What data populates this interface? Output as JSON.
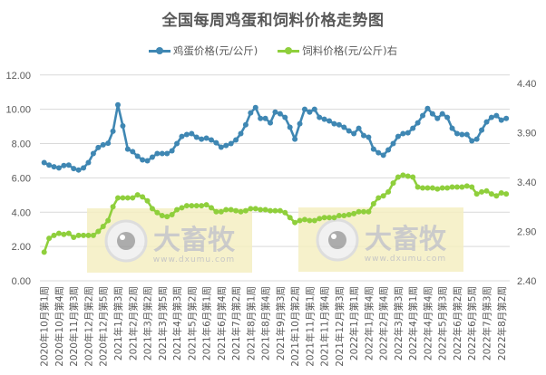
{
  "chart_data": {
    "type": "line",
    "title": "全国每周鸡蛋和饲料价格走势图",
    "xlabel": "",
    "ylabel": "",
    "y_left": {
      "ticks": [
        "0.00",
        "2.00",
        "4.00",
        "6.00",
        "8.00",
        "10.00",
        "12.00"
      ],
      "range": [
        0,
        12
      ]
    },
    "y_right": {
      "ticks": [
        "2.40",
        "2.90",
        "3.40",
        "3.90",
        "4.40"
      ],
      "range": [
        2.4,
        4.4
      ]
    },
    "grid": true,
    "legend_position": "top",
    "x_tick_labels": [
      "2020年10月第1周",
      "2020年10月第4周",
      "2020年11月第3周",
      "2020年12月第2周",
      "2020年12月第5周",
      "2021年1月第3周",
      "2021年2月第2周",
      "2021年3月第2周",
      "2021年3月第5周",
      "2021年4月第3周",
      "2021年5月第2周",
      "2021年6月第1周",
      "2021年6月第4周",
      "2021年7月第2周",
      "2021年8月第1周",
      "2021年8月第4周",
      "2021年9月第3周",
      "2021年10月第2周",
      "2021年11月第1周",
      "2021年11月第4周",
      "2021年12月第3周",
      "2022年1月第1周",
      "2022年1月第4周",
      "2022年2月第4周",
      "2022年3月第3周",
      "2022年4月第1周",
      "2022年4月第4周",
      "2022年5月第3周",
      "2022年6月第2周",
      "2022年6月第5周",
      "2022年7月第3周",
      "2022年8月第2周"
    ],
    "x_tick_every": 3,
    "series": [
      {
        "name": "鸡蛋价格(元/公斤)",
        "axis": "left",
        "color": "#3f87b3",
        "values": [
          6.89,
          6.75,
          6.65,
          6.58,
          6.72,
          6.75,
          6.54,
          6.46,
          6.58,
          6.89,
          7.42,
          7.77,
          7.93,
          8.02,
          8.72,
          10.26,
          9.03,
          7.68,
          7.53,
          7.26,
          7.05,
          7.0,
          7.21,
          7.42,
          7.42,
          7.42,
          7.58,
          8.0,
          8.42,
          8.53,
          8.58,
          8.37,
          8.26,
          8.32,
          8.21,
          8.05,
          7.79,
          7.89,
          8.0,
          8.21,
          8.58,
          9.1,
          9.79,
          10.1,
          9.47,
          9.47,
          9.21,
          9.84,
          9.74,
          9.53,
          8.95,
          8.26,
          9.16,
          10.0,
          9.84,
          10.0,
          9.53,
          9.42,
          9.32,
          9.16,
          9.1,
          8.95,
          8.74,
          8.58,
          8.89,
          8.47,
          8.37,
          7.68,
          7.47,
          7.32,
          7.63,
          8.0,
          8.42,
          8.58,
          8.63,
          8.89,
          9.21,
          9.63,
          10.05,
          9.74,
          9.47,
          9.74,
          9.53,
          8.89,
          8.58,
          8.53,
          8.53,
          8.16,
          8.26,
          8.79,
          9.26,
          9.53,
          9.63,
          9.37,
          9.47
        ]
      },
      {
        "name": "饲料价格(元/公斤)右",
        "axis": "right",
        "color": "#8fcf3c",
        "values": [
          2.69,
          2.83,
          2.86,
          2.88,
          2.87,
          2.88,
          2.84,
          2.86,
          2.86,
          2.86,
          2.86,
          2.9,
          2.95,
          3.01,
          3.15,
          3.24,
          3.24,
          3.24,
          3.24,
          3.27,
          3.25,
          3.21,
          3.13,
          3.09,
          3.06,
          3.05,
          3.07,
          3.12,
          3.14,
          3.16,
          3.16,
          3.16,
          3.16,
          3.17,
          3.14,
          3.1,
          3.1,
          3.12,
          3.12,
          3.11,
          3.1,
          3.11,
          3.13,
          3.13,
          3.12,
          3.12,
          3.11,
          3.11,
          3.11,
          3.09,
          3.04,
          2.99,
          3.01,
          3.02,
          3.01,
          3.01,
          3.03,
          3.04,
          3.04,
          3.04,
          3.06,
          3.06,
          3.07,
          3.08,
          3.1,
          3.1,
          3.1,
          3.18,
          3.24,
          3.26,
          3.3,
          3.39,
          3.45,
          3.47,
          3.46,
          3.45,
          3.35,
          3.34,
          3.34,
          3.34,
          3.33,
          3.34,
          3.34,
          3.35,
          3.35,
          3.35,
          3.36,
          3.35,
          3.28,
          3.3,
          3.31,
          3.28,
          3.26,
          3.29,
          3.28
        ]
      }
    ]
  },
  "legend": {
    "items": [
      {
        "label": "鸡蛋价格(元/公斤)",
        "color": "#3f87b3"
      },
      {
        "label": "饲料价格(元/公斤)右",
        "color": "#8fcf3c"
      }
    ]
  },
  "watermark": {
    "brand": "大畜牧",
    "url": "www.dxumu.com",
    "count": 2
  }
}
